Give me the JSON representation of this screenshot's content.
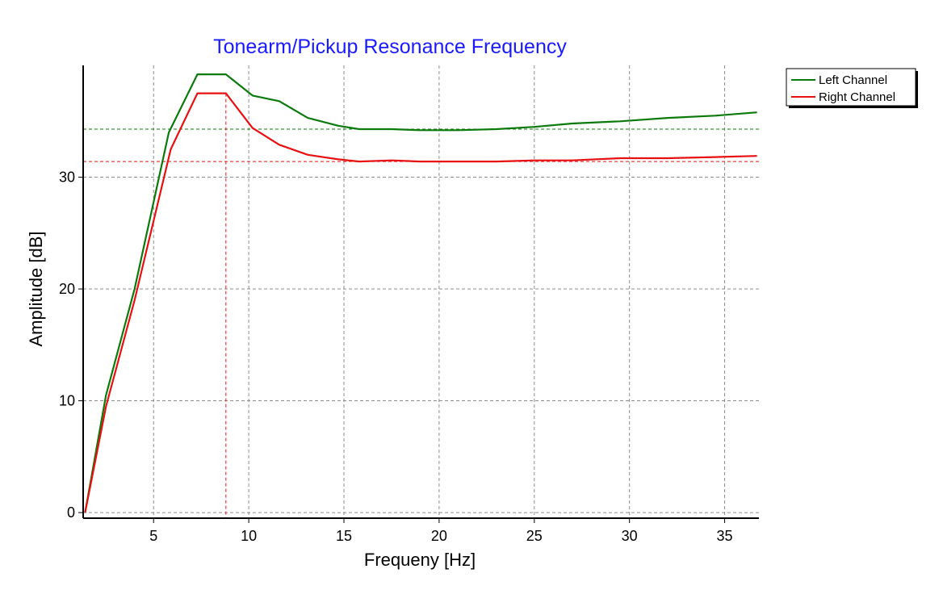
{
  "chart_data": {
    "type": "line",
    "title": "Tonearm/Pickup Resonance Frequency",
    "xlabel": "Frequeny [Hz]",
    "ylabel": "Amplitude [dB]",
    "xlim": [
      1.3,
      36.8
    ],
    "ylim": [
      -0.5,
      40
    ],
    "xticks": [
      5,
      10,
      15,
      20,
      25,
      30,
      35
    ],
    "yticks": [
      0,
      10,
      20,
      30
    ],
    "grid": true,
    "legend": "top-right, outside plot",
    "series": [
      {
        "name": "Left Channel",
        "color": "#0a7a0a",
        "x": [
          1.4,
          2.5,
          4.0,
          5.8,
          7.3,
          8.8,
          10.2,
          11.6,
          13.1,
          14.7,
          15.8,
          17.5,
          19.0,
          21.0,
          23.0,
          25.0,
          27.0,
          29.5,
          32.0,
          34.5,
          36.7
        ],
        "y": [
          0,
          10.5,
          20,
          34,
          39.2,
          39.2,
          37.3,
          36.8,
          35.3,
          34.6,
          34.3,
          34.3,
          34.2,
          34.2,
          34.3,
          34.5,
          34.8,
          35.0,
          35.3,
          35.5,
          35.8
        ],
        "reference_y": 34.3
      },
      {
        "name": "Right Channel",
        "color": "#e81010",
        "x": [
          1.4,
          2.5,
          4.0,
          5.9,
          7.3,
          8.8,
          10.2,
          11.6,
          13.1,
          14.7,
          15.8,
          17.5,
          19.0,
          21.0,
          23.0,
          25.0,
          27.0,
          29.5,
          32.0,
          34.5,
          36.7
        ],
        "y": [
          0,
          9.5,
          19,
          32.5,
          37.5,
          37.5,
          34.4,
          32.9,
          32.0,
          31.6,
          31.4,
          31.5,
          31.4,
          31.4,
          31.4,
          31.5,
          31.5,
          31.7,
          31.7,
          31.8,
          31.9
        ],
        "reference_y": 31.4
      }
    ],
    "resonance_x": 8.8
  }
}
